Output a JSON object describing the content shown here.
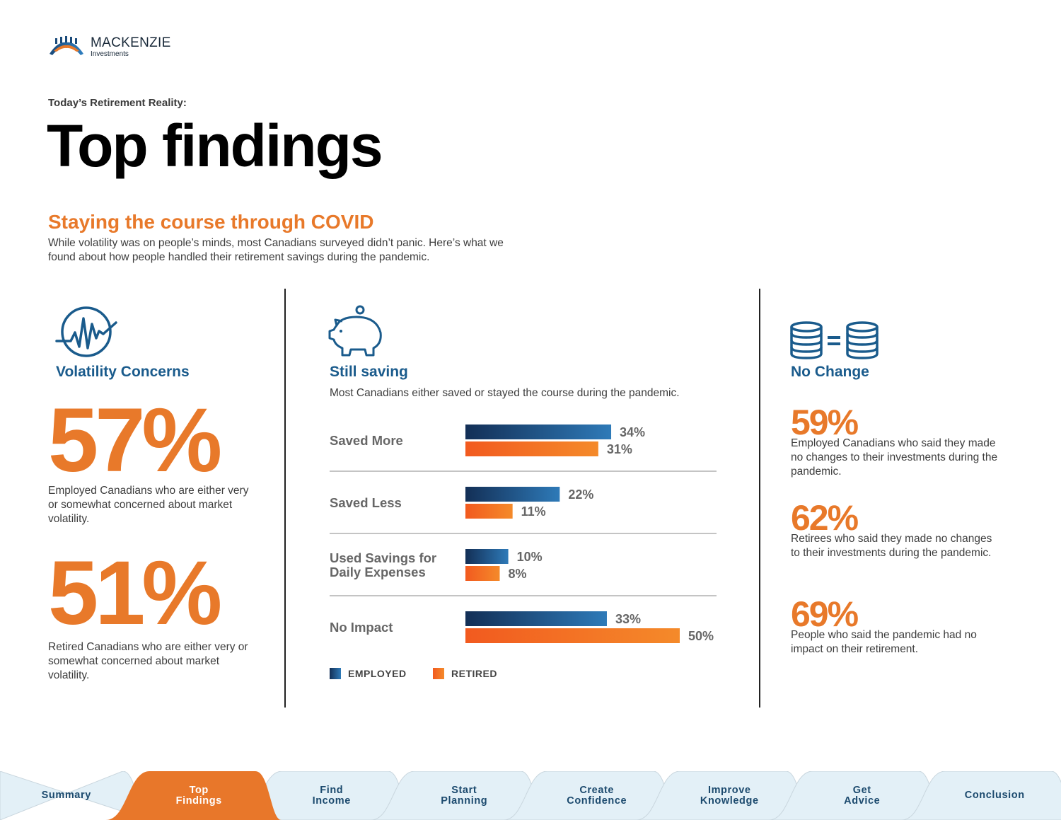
{
  "logo": {
    "brand": "MACKENZIE",
    "sub": "Investments"
  },
  "eyebrow": "Today’s Retirement Reality:",
  "title": "Top findings",
  "section": {
    "title": "Staying the course through COVID",
    "description": "While volatility was on people’s minds, most Canadians surveyed didn’t panic. Here’s what we found about how people handled their retirement savings during the pandemic."
  },
  "volatility": {
    "heading": "Volatility Concerns",
    "stats": [
      {
        "value": "57%",
        "desc": "Employed Canadians who are either very or somewhat concerned about market volatility."
      },
      {
        "value": "51%",
        "desc": "Retired Canadians who are either very or somewhat concerned about market volatility."
      }
    ]
  },
  "saving": {
    "heading": "Still saving",
    "description": "Most Canadians either saved or stayed the course during the pandemic."
  },
  "chart_data": {
    "type": "bar",
    "orientation": "horizontal",
    "categories": [
      "Saved More",
      "Saved Less",
      "Used Savings for Daily Expenses",
      "No Impact"
    ],
    "category_lines": [
      [
        "Saved More"
      ],
      [
        "Saved Less"
      ],
      [
        "Used Savings for",
        "Daily Expenses"
      ],
      [
        "No Impact"
      ]
    ],
    "series": [
      {
        "name": "EMPLOYED",
        "values": [
          34,
          22,
          10,
          33
        ],
        "labels": [
          "34%",
          "22%",
          "10%",
          "33%"
        ],
        "color": "#1a4a7a"
      },
      {
        "name": "RETIRED",
        "values": [
          31,
          11,
          8,
          50
        ],
        "labels": [
          "31%",
          "11%",
          "8%",
          "50%"
        ],
        "color": "#f26a21"
      }
    ],
    "unit": "%",
    "legend_position": "bottom-left",
    "grid": false
  },
  "nochange": {
    "heading": "No Change",
    "stats": [
      {
        "value": "59%",
        "desc": "Employed Canadians who said they made no changes to their investments during the pandemic."
      },
      {
        "value": "62%",
        "desc": "Retirees who said they made no changes to their investments during the pandemic."
      },
      {
        "value": "69%",
        "desc": "People who said the pandemic had no impact on their retirement."
      }
    ]
  },
  "nav": {
    "items": [
      {
        "label": "Summary"
      },
      {
        "label": "Top\nFindings"
      },
      {
        "label": "Find\nIncome"
      },
      {
        "label": "Start\nPlanning"
      },
      {
        "label": "Create\nConfidence"
      },
      {
        "label": "Improve\nKnowledge"
      },
      {
        "label": "Get\nAdvice"
      },
      {
        "label": "Conclusion"
      }
    ],
    "active_index": 1,
    "colors": {
      "active": "#e8772a",
      "base": "#e3f0f7",
      "edge": "#c9d6de"
    }
  }
}
